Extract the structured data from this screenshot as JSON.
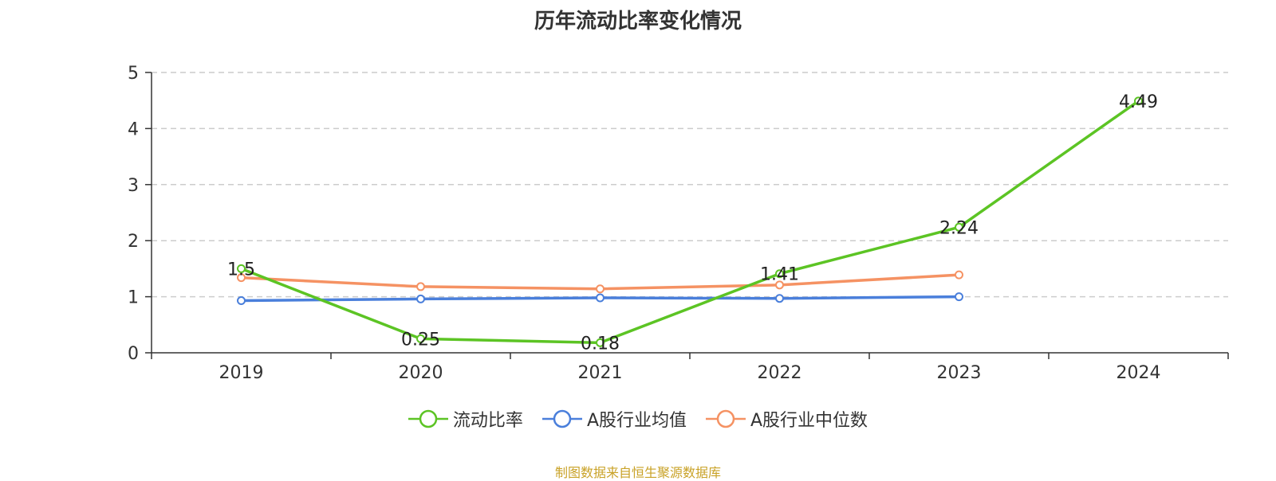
{
  "chart_data": {
    "type": "line",
    "title": "历年流动比率变化情况",
    "categories": [
      "2019",
      "2020",
      "2021",
      "2022",
      "2023",
      "2024"
    ],
    "ylim": [
      0,
      5
    ],
    "yticks": [
      "0",
      "1",
      "2",
      "3",
      "4",
      "5"
    ],
    "grid": true,
    "legend_position": "bottom",
    "series": [
      {
        "name": "流动比率",
        "color": "#5cc424",
        "values": [
          1.5,
          0.25,
          0.18,
          1.41,
          2.24,
          4.49
        ],
        "labels": [
          "1.5",
          "0.25",
          "0.18",
          "1.41",
          "2.24",
          "4.49"
        ]
      },
      {
        "name": "A股行业均值",
        "color": "#4a7fdb",
        "values": [
          0.93,
          0.96,
          0.98,
          0.97,
          1.0,
          null
        ]
      },
      {
        "name": "A股行业中位数",
        "color": "#f59263",
        "values": [
          1.34,
          1.18,
          1.14,
          1.21,
          1.39,
          null
        ]
      }
    ]
  },
  "source_note": "制图数据来自恒生聚源数据库"
}
